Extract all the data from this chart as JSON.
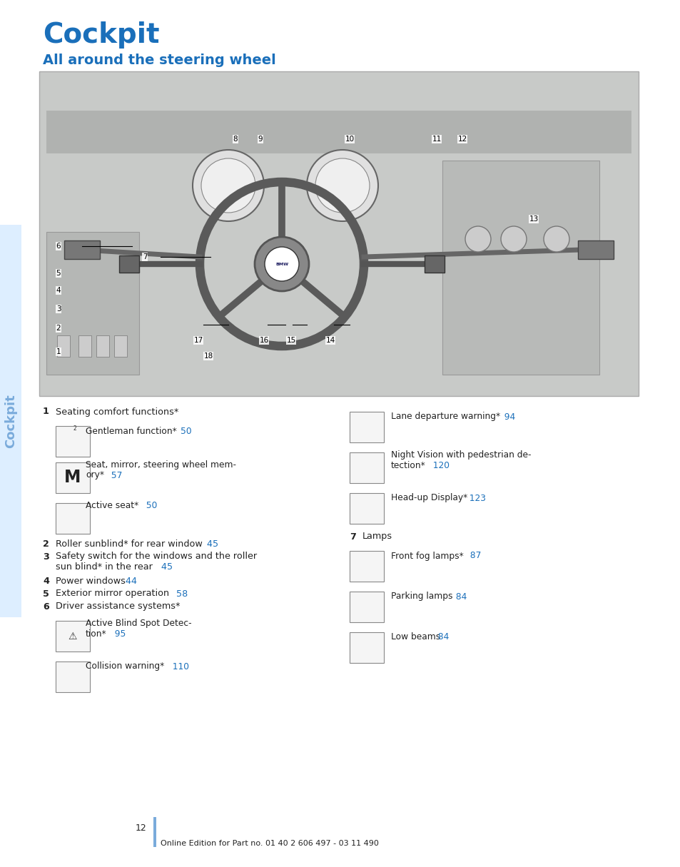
{
  "page_title": "Cockpit",
  "section_title": "All around the steering wheel",
  "sidebar_text": "Cockpit",
  "sidebar_color": "#7aabdb",
  "title_color": "#1a6fba",
  "page_bg": "#ffffff",
  "page_number": "12",
  "footer_text": "Online Edition for Part no. 01 40 2 606 497 - 03 11 490",
  "blue_bar_color": "#7aabdb",
  "img_placeholder_color": "#d8d8d8",
  "text_color": "#222222",
  "blue_link_color": "#1a6fba"
}
